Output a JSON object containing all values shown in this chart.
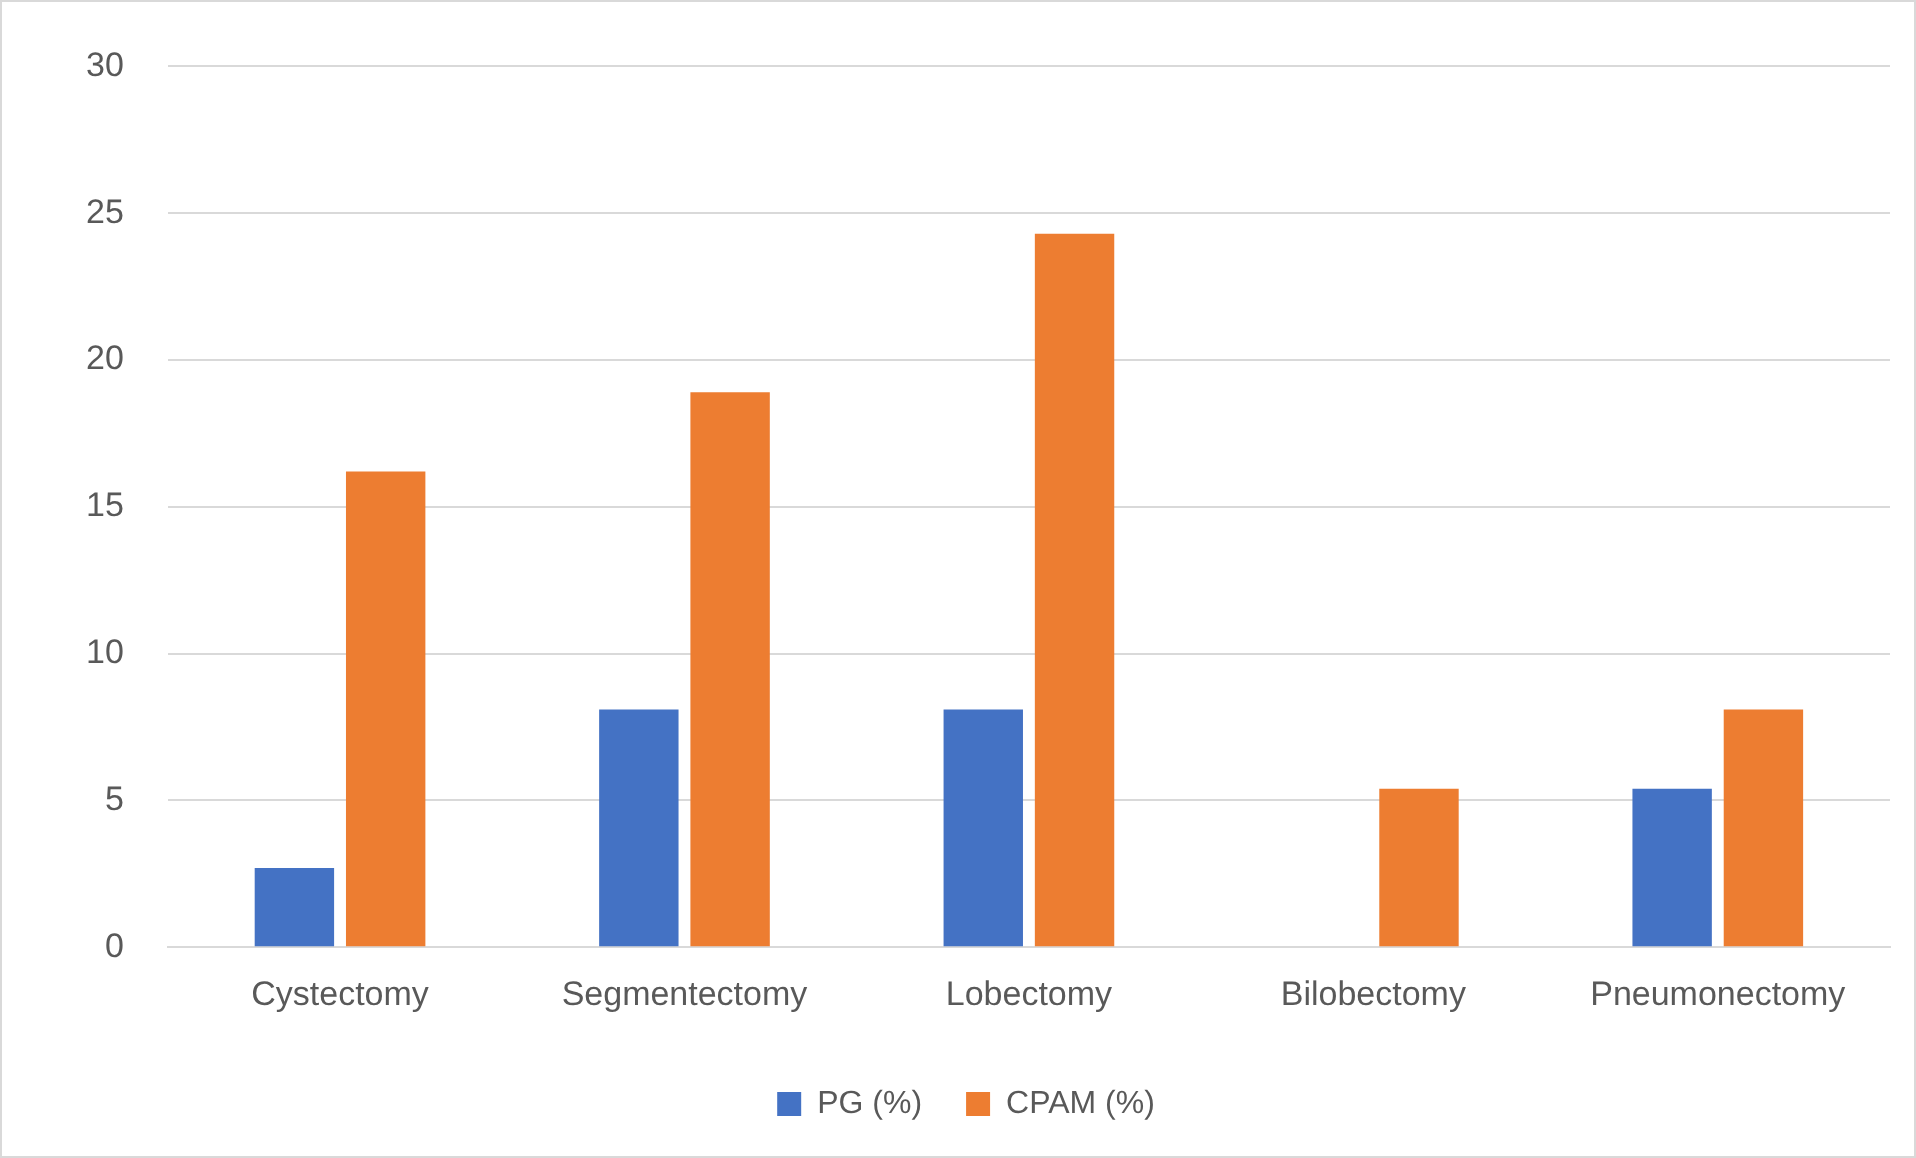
{
  "chart_data": {
    "type": "bar",
    "categories": [
      "Cystectomy",
      "Segmentectomy",
      "Lobectomy",
      "Bilobectomy",
      "Pneumonectomy"
    ],
    "series": [
      {
        "name": "PG (%)",
        "color": "#4472c4",
        "values": [
          2.7,
          8.1,
          8.1,
          0,
          5.4
        ]
      },
      {
        "name": "CPAM (%)",
        "color": "#ed7d31",
        "values": [
          16.2,
          18.9,
          24.3,
          5.4,
          8.1
        ]
      }
    ],
    "ylim": [
      0,
      30
    ],
    "yticks": [
      0,
      5,
      10,
      15,
      20,
      25,
      30
    ],
    "grid": "y",
    "legend": "bottom"
  }
}
